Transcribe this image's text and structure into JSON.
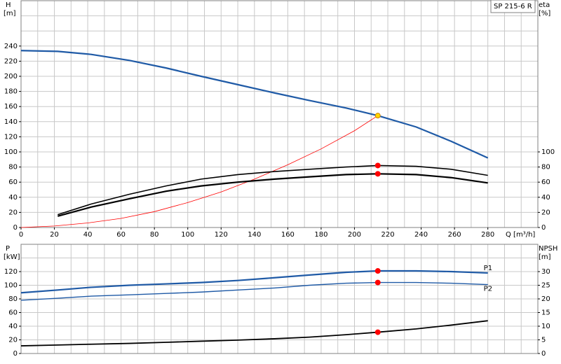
{
  "chart_data": [
    {
      "type": "line",
      "title": "SP 215-6 R",
      "ylabel": "H",
      "yunit": "[m]",
      "y2label": "eta",
      "y2unit": "[%]",
      "xlabel": "Q [m³/h]",
      "xlim": [
        0,
        310
      ],
      "xticks": [
        0,
        20,
        40,
        60,
        80,
        100,
        120,
        140,
        160,
        180,
        200,
        220,
        240,
        260,
        280
      ],
      "xminor": [
        0,
        10,
        20,
        30,
        40,
        50,
        60,
        70,
        80,
        90,
        100,
        110,
        120,
        130,
        140,
        150,
        160,
        170,
        180,
        190,
        200,
        210,
        220,
        230,
        240,
        250,
        260,
        270,
        280,
        290,
        300
      ],
      "ylim": [
        0,
        300
      ],
      "yticks": [
        0,
        20,
        40,
        60,
        80,
        100,
        120,
        140,
        160,
        180,
        200,
        220,
        240
      ],
      "yminor": [
        0,
        20,
        40,
        60,
        80,
        100,
        120,
        140,
        160,
        180,
        200,
        220,
        240,
        260,
        280
      ],
      "y2lim": [
        0,
        300
      ],
      "y2ticks": [
        0,
        20,
        40,
        60,
        80,
        100
      ],
      "grid": true,
      "series": [
        {
          "style": "line",
          "color": "#1f5aa6",
          "width": 2.2,
          "x": [
            0,
            22,
            42,
            65,
            87,
            108,
            130,
            152,
            173,
            195,
            214,
            237,
            258,
            280
          ],
          "values": [
            234,
            233,
            229,
            221,
            211,
            200,
            189,
            178,
            168,
            158,
            148,
            133,
            114,
            92
          ]
        },
        {
          "style": "line",
          "color": "#ff0000",
          "width": 0.8,
          "x": [
            0,
            20,
            40,
            60,
            80,
            100,
            120,
            140,
            160,
            180,
            200,
            214
          ],
          "values": [
            0,
            2,
            6,
            12,
            21,
            33,
            47,
            64,
            83,
            104,
            128,
            148
          ]
        },
        {
          "style": "line",
          "axis": "y2",
          "color": "#000000",
          "width": 1.6,
          "x": [
            22,
            42,
            65,
            87,
            108,
            130,
            152,
            173,
            195,
            214,
            237,
            258,
            280
          ],
          "values": [
            17,
            31,
            44,
            55,
            64,
            70,
            74,
            77,
            80,
            82,
            81,
            77,
            69
          ]
        },
        {
          "style": "line",
          "axis": "y2",
          "color": "#000000",
          "width": 2.2,
          "x": [
            22,
            42,
            65,
            87,
            108,
            130,
            152,
            173,
            195,
            214,
            237,
            258,
            280
          ],
          "values": [
            15,
            27,
            38,
            48,
            55,
            60,
            64,
            67,
            70,
            71,
            70,
            66,
            59
          ]
        },
        {
          "style": "point",
          "color": "#ffd700",
          "x": [
            214
          ],
          "values": [
            148
          ]
        },
        {
          "style": "point",
          "axis": "y2",
          "color": "#ff0000",
          "x": [
            214,
            214
          ],
          "values": [
            82,
            71
          ]
        }
      ]
    },
    {
      "type": "line",
      "ylabel": "P",
      "yunit": "[kW]",
      "y2label": "NPSH",
      "y2unit": "[m]",
      "xlim": [
        0,
        310
      ],
      "xminor": [
        0,
        10,
        20,
        30,
        40,
        50,
        60,
        70,
        80,
        90,
        100,
        110,
        120,
        130,
        140,
        150,
        160,
        170,
        180,
        190,
        200,
        210,
        220,
        230,
        240,
        250,
        260,
        270,
        280,
        290,
        300
      ],
      "ylim": [
        0,
        160
      ],
      "yticks": [
        0,
        20,
        40,
        60,
        80,
        100,
        120
      ],
      "yminor": [
        0,
        20,
        40,
        60,
        80,
        100,
        120,
        140
      ],
      "y2lim": [
        0,
        40
      ],
      "y2ticks": [
        0,
        5,
        10,
        15,
        20,
        25,
        30
      ],
      "grid": true,
      "series": [
        {
          "name": "P1",
          "style": "line",
          "color": "#1f5aa6",
          "width": 2.2,
          "x": [
            0,
            22,
            42,
            65,
            87,
            108,
            130,
            152,
            173,
            195,
            214,
            237,
            258,
            280
          ],
          "values": [
            89,
            93,
            97,
            100,
            102,
            104,
            107,
            111,
            115,
            119,
            121,
            121,
            120,
            118
          ]
        },
        {
          "name": "P2",
          "style": "line",
          "color": "#1f5aa6",
          "width": 1.4,
          "x": [
            0,
            22,
            42,
            65,
            87,
            108,
            130,
            152,
            173,
            195,
            214,
            237,
            258,
            280
          ],
          "values": [
            78,
            81,
            84,
            86,
            88,
            90,
            93,
            96,
            100,
            103,
            104,
            104,
            103,
            101
          ]
        },
        {
          "style": "line",
          "axis": "y2",
          "color": "#000000",
          "width": 1.8,
          "x": [
            0,
            22,
            42,
            65,
            87,
            108,
            130,
            152,
            173,
            195,
            214,
            237,
            258,
            280
          ],
          "values": [
            2.8,
            3.1,
            3.4,
            3.7,
            4.1,
            4.5,
            4.9,
            5.4,
            6.0,
            6.9,
            7.8,
            9.0,
            10.4,
            12.0
          ]
        },
        {
          "style": "point",
          "color": "#ff0000",
          "x": [
            214,
            214
          ],
          "values": [
            121,
            104
          ]
        },
        {
          "style": "point",
          "axis": "y2",
          "color": "#ff0000",
          "x": [
            214
          ],
          "values": [
            7.8
          ]
        }
      ]
    }
  ]
}
